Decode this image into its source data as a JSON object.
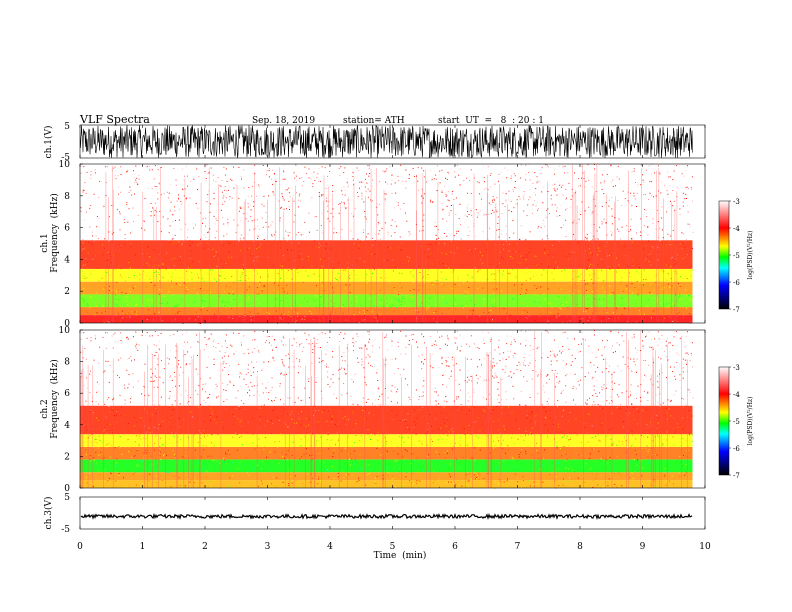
{
  "header": {
    "title": "VLF  Spectra",
    "date": "Sep. 18, 2019",
    "station": "station= ATH",
    "start": "start  UT  =   8  : 20 : 1"
  },
  "colorbar": {
    "label": "log(PSD)(V²/Hz)",
    "ticks": [
      "-3",
      "-4",
      "-5",
      "-6",
      "-7"
    ],
    "stops": [
      "#ffffff",
      "#ff0000",
      "#ffff00",
      "#00ff00",
      "#00ffff",
      "#0000ff",
      "#000000"
    ]
  },
  "chart_data": [
    {
      "type": "line",
      "panel": "ch1-waveform",
      "ylabel": "ch.1(V)",
      "ylim": [
        -5,
        5
      ],
      "yticks": [
        "5",
        "-5"
      ],
      "xlim": [
        0,
        10
      ],
      "data_end_min": 9.8,
      "description_of_signal": "dense noise spanning full range",
      "amplitude_range": [
        -5,
        5
      ]
    },
    {
      "type": "heatmap",
      "panel": "ch1-spectrogram",
      "ylabel_line1": "ch.1",
      "ylabel_line2": "Frequency  (kHz)",
      "ylim": [
        0,
        10
      ],
      "yticks": [
        "0",
        "2",
        "4",
        "6",
        "8",
        "10"
      ],
      "xlim": [
        0,
        10
      ],
      "bands_khz": [
        {
          "from": 0.0,
          "to": 0.5,
          "level": -3.6
        },
        {
          "from": 0.5,
          "to": 1.0,
          "level": -3.9
        },
        {
          "from": 1.0,
          "to": 1.8,
          "level": -4.6
        },
        {
          "from": 1.8,
          "to": 2.6,
          "level": -4.0
        },
        {
          "from": 2.6,
          "to": 3.4,
          "level": -4.3
        },
        {
          "from": 3.4,
          "to": 5.2,
          "level": -3.7
        },
        {
          "from": 5.2,
          "to": 10.0,
          "level": -3.3
        }
      ]
    },
    {
      "type": "heatmap",
      "panel": "ch2-spectrogram",
      "ylabel_line1": "ch.2",
      "ylabel_line2": "Frequency  (kHz)",
      "ylim": [
        0,
        10
      ],
      "yticks": [
        "0",
        "2",
        "4",
        "6",
        "8",
        "10"
      ],
      "xlim": [
        0,
        10
      ],
      "bands_khz": [
        {
          "from": 0.0,
          "to": 0.5,
          "level": -4.1
        },
        {
          "from": 0.5,
          "to": 1.0,
          "level": -4.0
        },
        {
          "from": 1.0,
          "to": 1.8,
          "level": -4.8
        },
        {
          "from": 1.8,
          "to": 2.6,
          "level": -3.9
        },
        {
          "from": 2.6,
          "to": 3.4,
          "level": -4.3
        },
        {
          "from": 3.4,
          "to": 5.2,
          "level": -3.7
        },
        {
          "from": 5.2,
          "to": 10.0,
          "level": -3.3
        }
      ]
    },
    {
      "type": "line",
      "panel": "ch3-waveform",
      "ylabel": "ch.3(V)",
      "ylim": [
        -5,
        5
      ],
      "yticks": [
        "5",
        "-5"
      ],
      "xlim": [
        0,
        10
      ],
      "data_end_min": 9.8,
      "mean_value": -1.0,
      "amplitude_range": [
        -1.6,
        -0.5
      ]
    }
  ],
  "xaxis": {
    "label": "Time  (min)",
    "ticks": [
      "0",
      "1",
      "2",
      "3",
      "4",
      "5",
      "6",
      "7",
      "8",
      "9",
      "10"
    ]
  }
}
